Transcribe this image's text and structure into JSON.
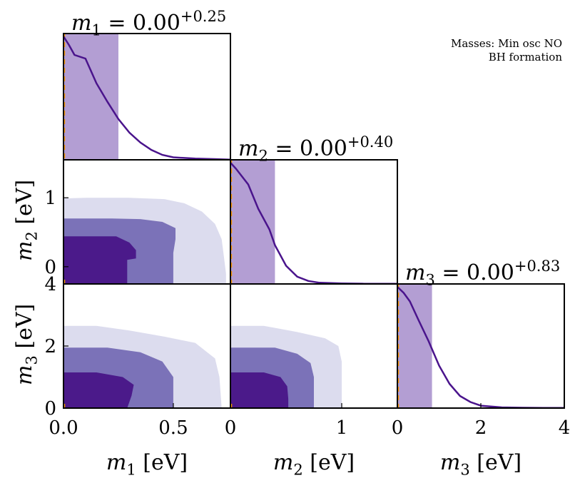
{
  "annotation": {
    "line1": "Masses: Min osc NO",
    "line2": "BH formation"
  },
  "colors": {
    "dark": "#4b1a8a",
    "mid": "#7b72b8",
    "light": "#dcdcee",
    "band": "#b39ed3",
    "curve": "#4a148c",
    "truth": "#ff9900"
  },
  "chart_data": [
    {
      "type": "line",
      "panel": "m1-marginal",
      "title": {
        "symbol": "m",
        "sub": "1",
        "eq": " = 0.00",
        "sup": "+0.25"
      },
      "x": [
        0,
        0.025,
        0.05,
        0.1,
        0.125,
        0.15,
        0.2,
        0.25,
        0.3,
        0.35,
        0.4,
        0.45,
        0.5,
        0.6,
        0.7,
        0.76
      ],
      "y": [
        1.0,
        0.93,
        0.85,
        0.82,
        0.72,
        0.62,
        0.47,
        0.33,
        0.22,
        0.14,
        0.08,
        0.04,
        0.02,
        0.01,
        0.005,
        0.002
      ],
      "band": [
        0,
        0.25
      ],
      "truth": 0,
      "xlim": [
        0,
        0.76
      ]
    },
    {
      "type": "line",
      "panel": "m2-marginal",
      "title": {
        "symbol": "m",
        "sub": "2",
        "eq": " = 0.00",
        "sup": "+0.40"
      },
      "x": [
        0,
        0.05,
        0.16,
        0.25,
        0.35,
        0.4,
        0.5,
        0.6,
        0.7,
        0.8,
        1.0,
        1.2,
        1.5
      ],
      "y": [
        1.0,
        0.95,
        0.82,
        0.62,
        0.45,
        0.32,
        0.15,
        0.06,
        0.025,
        0.01,
        0.004,
        0.002,
        0.001
      ],
      "band": [
        0,
        0.4
      ],
      "truth": 0,
      "xlim": [
        0,
        1.5
      ]
    },
    {
      "type": "line",
      "panel": "m3-marginal",
      "title": {
        "symbol": "m",
        "sub": "3",
        "eq": " = 0.00",
        "sup": "+0.83"
      },
      "x": [
        0,
        0.15,
        0.3,
        0.5,
        0.75,
        1.0,
        1.25,
        1.5,
        1.75,
        2.0,
        2.5,
        3.0,
        3.5,
        4.0
      ],
      "y": [
        1.0,
        0.95,
        0.88,
        0.73,
        0.55,
        0.35,
        0.2,
        0.1,
        0.05,
        0.02,
        0.006,
        0.003,
        0.0015,
        0.001
      ],
      "band": [
        0,
        0.83
      ],
      "truth": 0,
      "xlim": [
        0,
        4
      ]
    },
    {
      "type": "contour",
      "panel": "m1-m2",
      "xlim": [
        0,
        0.76
      ],
      "ylim": [
        -0.25,
        1.55
      ],
      "levels": [
        {
          "name": "3sigma",
          "color": "light",
          "points": [
            [
              0,
              0.99
            ],
            [
              0.1,
              1.0
            ],
            [
              0.3,
              1.0
            ],
            [
              0.46,
              0.98
            ],
            [
              0.55,
              0.92
            ],
            [
              0.63,
              0.8
            ],
            [
              0.69,
              0.62
            ],
            [
              0.72,
              0.4
            ],
            [
              0.73,
              0.15
            ],
            [
              0.74,
              -0.1
            ],
            [
              0.74,
              -0.25
            ],
            [
              0,
              -0.25
            ]
          ]
        },
        {
          "name": "2sigma",
          "color": "mid",
          "points": [
            [
              0,
              0.7
            ],
            [
              0.22,
              0.7
            ],
            [
              0.35,
              0.69
            ],
            [
              0.45,
              0.65
            ],
            [
              0.51,
              0.56
            ],
            [
              0.51,
              0.4
            ],
            [
              0.5,
              0.2
            ],
            [
              0.5,
              -0.25
            ],
            [
              0,
              -0.25
            ]
          ]
        },
        {
          "name": "1sigma",
          "color": "dark",
          "points": [
            [
              0,
              0.44
            ],
            [
              0.24,
              0.44
            ],
            [
              0.3,
              0.35
            ],
            [
              0.33,
              0.24
            ],
            [
              0.33,
              0.12
            ],
            [
              0.29,
              0.1
            ],
            [
              0.29,
              -0.25
            ],
            [
              0,
              -0.25
            ]
          ]
        }
      ],
      "yticks": [
        0,
        1
      ],
      "ylabel": {
        "symbol": "m",
        "sub": "2",
        "unit": " [eV]"
      }
    },
    {
      "type": "contour",
      "panel": "m1-m3",
      "xlim": [
        0,
        0.76
      ],
      "ylim": [
        0,
        4.0
      ],
      "levels": [
        {
          "name": "3sigma",
          "color": "light",
          "points": [
            [
              0,
              2.65
            ],
            [
              0.15,
              2.65
            ],
            [
              0.3,
              2.5
            ],
            [
              0.46,
              2.3
            ],
            [
              0.6,
              2.1
            ],
            [
              0.69,
              1.6
            ],
            [
              0.71,
              1.0
            ],
            [
              0.72,
              0
            ],
            [
              0,
              0
            ]
          ]
        },
        {
          "name": "2sigma",
          "color": "mid",
          "points": [
            [
              0,
              1.95
            ],
            [
              0.2,
              1.95
            ],
            [
              0.35,
              1.8
            ],
            [
              0.45,
              1.5
            ],
            [
              0.5,
              1.0
            ],
            [
              0.5,
              0
            ],
            [
              0,
              0
            ]
          ]
        },
        {
          "name": "1sigma",
          "color": "dark",
          "points": [
            [
              0,
              1.15
            ],
            [
              0.15,
              1.15
            ],
            [
              0.27,
              1.0
            ],
            [
              0.32,
              0.75
            ],
            [
              0.31,
              0.4
            ],
            [
              0.29,
              0
            ],
            [
              0,
              0
            ]
          ]
        }
      ],
      "xticks": [
        0.0,
        0.5
      ],
      "xticklabels": [
        "0.0",
        "0.5"
      ],
      "yticks": [
        0,
        2,
        4
      ],
      "xlabel": {
        "symbol": "m",
        "sub": "1",
        "unit": " [eV]"
      },
      "ylabel": {
        "symbol": "m",
        "sub": "3",
        "unit": " [eV]"
      }
    },
    {
      "type": "contour",
      "panel": "m2-m3",
      "xlim": [
        0,
        1.5
      ],
      "ylim": [
        0,
        4.0
      ],
      "levels": [
        {
          "name": "3sigma",
          "color": "light",
          "points": [
            [
              0,
              2.65
            ],
            [
              0.3,
              2.65
            ],
            [
              0.6,
              2.45
            ],
            [
              0.85,
              2.25
            ],
            [
              0.97,
              2.0
            ],
            [
              1.0,
              1.5
            ],
            [
              1.0,
              0
            ],
            [
              0,
              0
            ]
          ]
        },
        {
          "name": "2sigma",
          "color": "mid",
          "points": [
            [
              0,
              1.95
            ],
            [
              0.4,
              1.95
            ],
            [
              0.6,
              1.75
            ],
            [
              0.72,
              1.45
            ],
            [
              0.75,
              1.0
            ],
            [
              0.75,
              0
            ],
            [
              0,
              0
            ]
          ]
        },
        {
          "name": "1sigma",
          "color": "dark",
          "points": [
            [
              0,
              1.15
            ],
            [
              0.3,
              1.15
            ],
            [
              0.45,
              1.0
            ],
            [
              0.51,
              0.7
            ],
            [
              0.52,
              0.3
            ],
            [
              0.52,
              0
            ],
            [
              0,
              0
            ]
          ]
        }
      ],
      "xticks": [
        0,
        1
      ],
      "xticklabels": [
        "0",
        "1"
      ],
      "xlabel": {
        "symbol": "m",
        "sub": "2",
        "unit": " [eV]"
      }
    },
    {
      "type": "line",
      "panel": "m3-axis",
      "xticks": [
        0,
        2,
        4
      ],
      "xticklabels": [
        "0",
        "2",
        "4"
      ],
      "xlabel": {
        "symbol": "m",
        "sub": "3",
        "unit": " [eV]"
      }
    }
  ]
}
